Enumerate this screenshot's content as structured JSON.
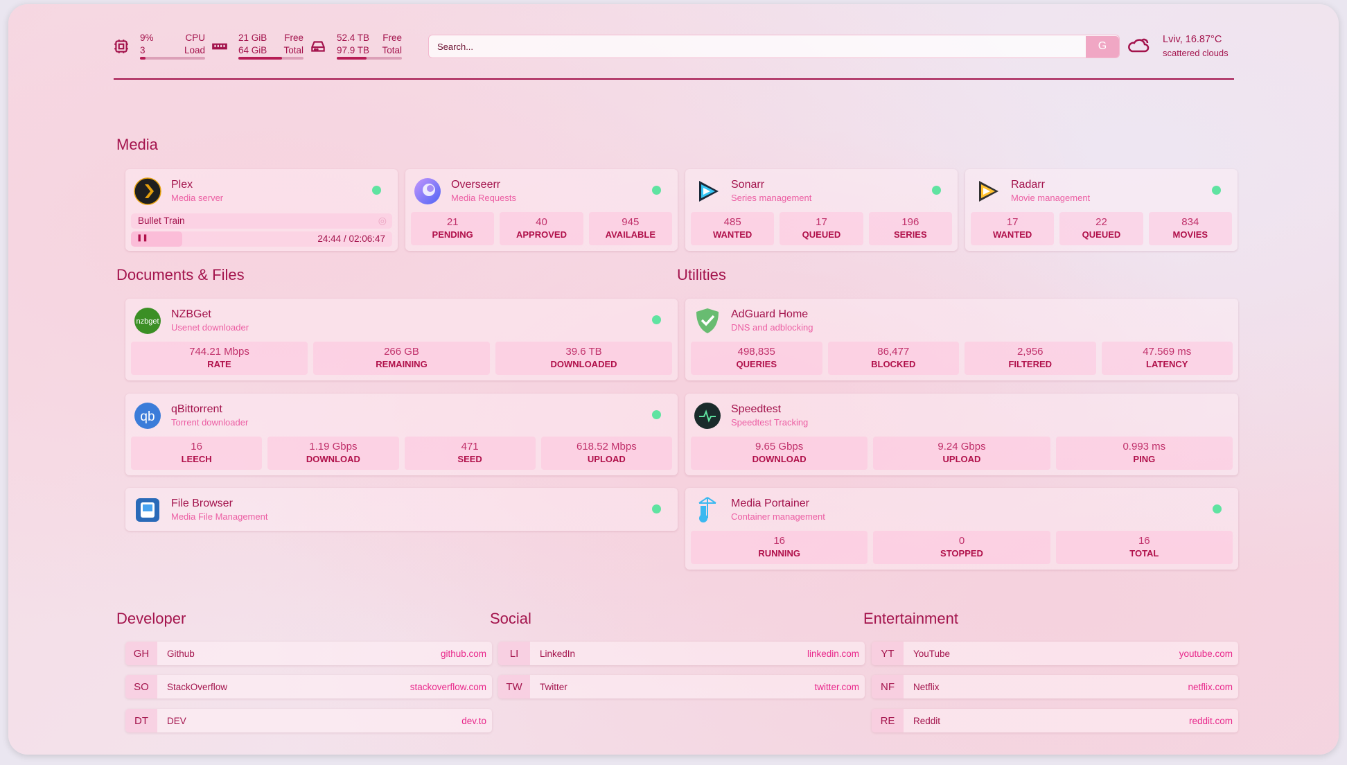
{
  "colors": {
    "accent": "#a3134c",
    "subtitle": "#ec5ea3",
    "status_online": "#5fe3a1",
    "link": "#e8268a"
  },
  "header": {
    "cpu": {
      "icon": "cpu-icon",
      "value": "9%",
      "value2": "3",
      "label": "CPU",
      "label2": "Load",
      "percent": 9
    },
    "memory": {
      "icon": "memory-icon",
      "value": "21 GiB",
      "value2": "64 GiB",
      "label": "Free",
      "label2": "Total",
      "percent": 67
    },
    "disk": {
      "icon": "disk-icon",
      "value": "52.4 TB",
      "value2": "97.9 TB",
      "label": "Free",
      "label2": "Total",
      "percent": 46
    },
    "search": {
      "placeholder": "Search...",
      "button": "G"
    },
    "weather": {
      "icon": "cloud-sun-icon",
      "location": "Lviv, 16.87°C",
      "condition": "scattered clouds"
    }
  },
  "sections": {
    "media": "Media",
    "docs": "Documents & Files",
    "utilities": "Utilities",
    "developer": "Developer",
    "social": "Social",
    "entertainment": "Entertainment"
  },
  "media": [
    {
      "id": "plex",
      "name": "Plex",
      "desc": "Media server",
      "icon": "plex-icon",
      "now_playing": {
        "title": "Bullet Train",
        "time": "24:44 / 02:06:47",
        "progress": 19.5
      }
    },
    {
      "id": "overseerr",
      "name": "Overseerr",
      "desc": "Media Requests",
      "icon": "overseerr-icon",
      "stats": [
        {
          "v": "21",
          "l": "PENDING"
        },
        {
          "v": "40",
          "l": "APPROVED"
        },
        {
          "v": "945",
          "l": "AVAILABLE"
        }
      ]
    },
    {
      "id": "sonarr",
      "name": "Sonarr",
      "desc": "Series management",
      "icon": "sonarr-icon",
      "stats": [
        {
          "v": "485",
          "l": "WANTED"
        },
        {
          "v": "17",
          "l": "QUEUED"
        },
        {
          "v": "196",
          "l": "SERIES"
        }
      ]
    },
    {
      "id": "radarr",
      "name": "Radarr",
      "desc": "Movie management",
      "icon": "radarr-icon",
      "stats": [
        {
          "v": "17",
          "l": "WANTED"
        },
        {
          "v": "22",
          "l": "QUEUED"
        },
        {
          "v": "834",
          "l": "MOVIES"
        }
      ]
    }
  ],
  "docs": [
    {
      "id": "nzbget",
      "name": "NZBGet",
      "desc": "Usenet downloader",
      "icon": "nzbget-icon",
      "stats": [
        {
          "v": "744.21 Mbps",
          "l": "RATE"
        },
        {
          "v": "266 GB",
          "l": "REMAINING"
        },
        {
          "v": "39.6 TB",
          "l": "DOWNLOADED"
        }
      ]
    },
    {
      "id": "qbittorrent",
      "name": "qBittorrent",
      "desc": "Torrent downloader",
      "icon": "qbittorrent-icon",
      "stats": [
        {
          "v": "16",
          "l": "LEECH"
        },
        {
          "v": "1.19 Gbps",
          "l": "DOWNLOAD"
        },
        {
          "v": "471",
          "l": "SEED"
        },
        {
          "v": "618.52 Mbps",
          "l": "UPLOAD"
        }
      ]
    },
    {
      "id": "filebrowser",
      "name": "File Browser",
      "desc": "Media File Management",
      "icon": "file-browser-icon"
    }
  ],
  "utilities": [
    {
      "id": "adguard",
      "name": "AdGuard Home",
      "desc": "DNS and adblocking",
      "icon": "adguard-shield-icon",
      "nodot": true,
      "stats": [
        {
          "v": "498,835",
          "l": "QUERIES"
        },
        {
          "v": "86,477",
          "l": "BLOCKED"
        },
        {
          "v": "2,956",
          "l": "FILTERED"
        },
        {
          "v": "47.569 ms",
          "l": "LATENCY"
        }
      ]
    },
    {
      "id": "speedtest",
      "name": "Speedtest",
      "desc": "Speedtest Tracking",
      "icon": "speedtest-icon",
      "nodot": true,
      "stats": [
        {
          "v": "9.65 Gbps",
          "l": "DOWNLOAD"
        },
        {
          "v": "9.24 Gbps",
          "l": "UPLOAD"
        },
        {
          "v": "0.993 ms",
          "l": "PING"
        }
      ]
    },
    {
      "id": "portainer",
      "name": "Media Portainer",
      "desc": "Container management",
      "icon": "portainer-icon",
      "stats": [
        {
          "v": "16",
          "l": "RUNNING"
        },
        {
          "v": "0",
          "l": "STOPPED"
        },
        {
          "v": "16",
          "l": "TOTAL"
        }
      ]
    }
  ],
  "bookmarks": {
    "developer": [
      {
        "abbr": "GH",
        "name": "Github",
        "url": "github.com"
      },
      {
        "abbr": "SO",
        "name": "StackOverflow",
        "url": "stackoverflow.com"
      },
      {
        "abbr": "DT",
        "name": "DEV",
        "url": "dev.to"
      }
    ],
    "social": [
      {
        "abbr": "LI",
        "name": "LinkedIn",
        "url": "linkedin.com"
      },
      {
        "abbr": "TW",
        "name": "Twitter",
        "url": "twitter.com"
      }
    ],
    "entertainment": [
      {
        "abbr": "YT",
        "name": "YouTube",
        "url": "youtube.com"
      },
      {
        "abbr": "NF",
        "name": "Netflix",
        "url": "netflix.com"
      },
      {
        "abbr": "RE",
        "name": "Reddit",
        "url": "reddit.com"
      }
    ]
  }
}
